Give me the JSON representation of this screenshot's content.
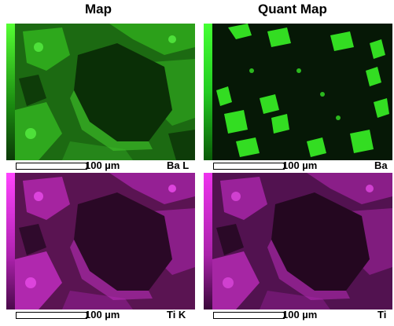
{
  "columns": {
    "left_title": "Map",
    "right_title": "Quant Map"
  },
  "panels": [
    {
      "scale": "100 µm",
      "element": "Ba L",
      "color": "#33dd22",
      "dark": "#0a2a06"
    },
    {
      "scale": "100 µm",
      "element": "Ba",
      "color": "#22dd22",
      "dark": "#061f06"
    },
    {
      "scale": "100 µm",
      "element": "Ti K",
      "color": "#cc22cc",
      "dark": "#25061f"
    },
    {
      "scale": "100 µm",
      "element": "Ti",
      "color": "#cc22cc",
      "dark": "#1f061a"
    }
  ]
}
